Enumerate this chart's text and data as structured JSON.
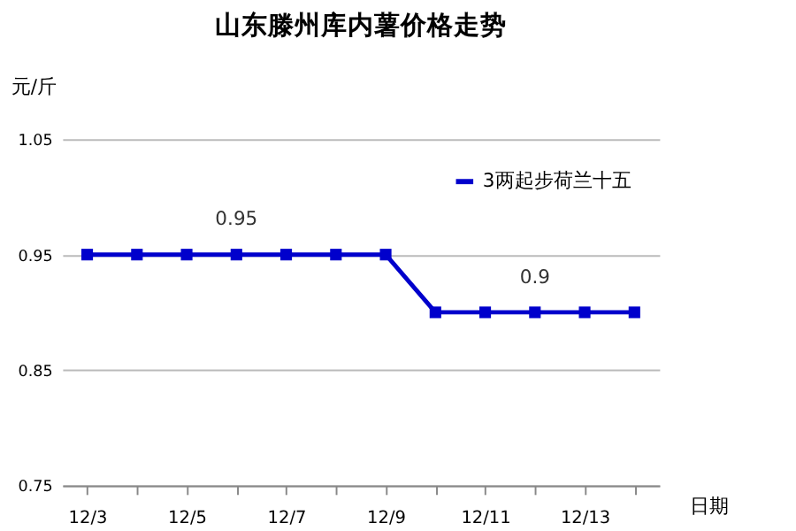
{
  "chart_data": {
    "type": "line",
    "title": "山东滕州库内薯价格走势",
    "ylabel": "元/斤",
    "xlabel": "日期",
    "categories": [
      "12/3",
      null,
      "12/5",
      null,
      "12/7",
      null,
      "12/9",
      null,
      "12/11",
      null,
      "12/13",
      null
    ],
    "series": [
      {
        "name": "3两起步荷兰十五",
        "color": "#0000cc",
        "values": [
          0.95,
          0.95,
          0.95,
          0.95,
          0.95,
          0.95,
          0.95,
          0.9,
          0.9,
          0.9,
          0.9,
          0.9
        ],
        "value_labels": [
          null,
          null,
          null,
          "0.95",
          null,
          null,
          null,
          null,
          null,
          "0.9",
          null,
          null
        ]
      }
    ],
    "ylim": [
      0.75,
      1.05
    ],
    "yticks": [
      0.75,
      0.85,
      0.95,
      1.05
    ],
    "grid": "y",
    "legend": "top right",
    "marker": "square",
    "line_style": "solid"
  }
}
